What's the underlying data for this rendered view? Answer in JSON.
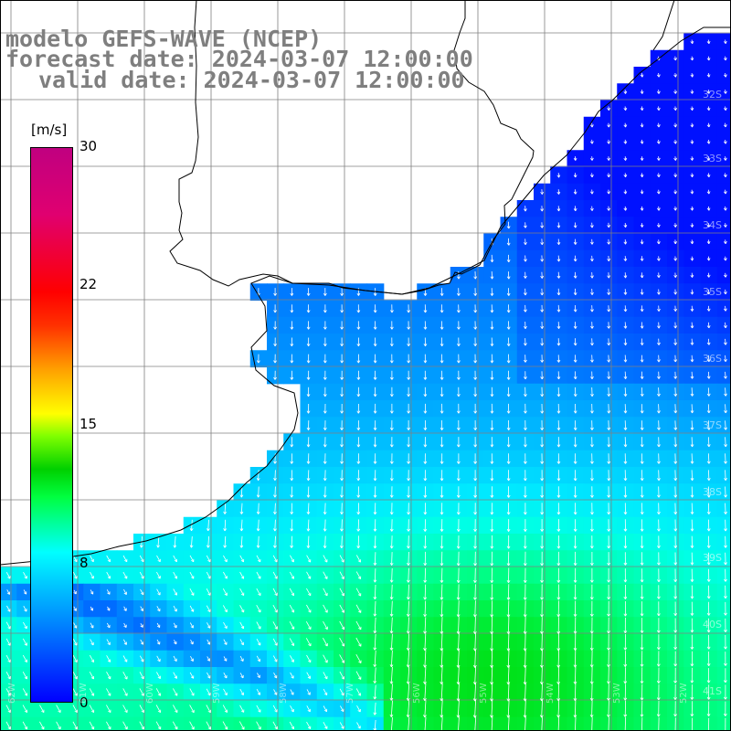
{
  "title": {
    "model": "modelo GEFS-WAVE (NCEP)",
    "forecast": "forecast date: 2024-03-07 12:00:00",
    "valid": "valid date: 2024-03-07 12:00:00"
  },
  "colorbar": {
    "unit": "[m/s]",
    "ticks": [
      "30",
      "22",
      "15",
      "8",
      "0"
    ],
    "range": [
      0,
      30
    ]
  },
  "lat_labels": [
    "32S",
    "33S",
    "34S",
    "35S",
    "36S",
    "37S",
    "38S",
    "39S",
    "40S",
    "41S"
  ],
  "lon_labels": [
    "62W",
    "61W",
    "60W",
    "59W",
    "58W",
    "57W",
    "56W",
    "55W",
    "54W",
    "53W",
    "52W"
  ],
  "colors": {
    "land": "#ffffff",
    "coast": "#000000",
    "grid": "#808080",
    "arrow": "#ffffff"
  },
  "chart_data": {
    "type": "heatmap",
    "variable": "wind speed with direction arrows",
    "unit": "[m/s]",
    "scale": [
      0,
      30
    ],
    "description_regions": [
      {
        "region": "north-east near coast",
        "speed_ms": 4
      },
      {
        "region": "central",
        "speed_ms": 7
      },
      {
        "region": "south-center",
        "speed_ms": 11
      },
      {
        "region": "south-west coast",
        "speed_ms": 3
      }
    ]
  }
}
